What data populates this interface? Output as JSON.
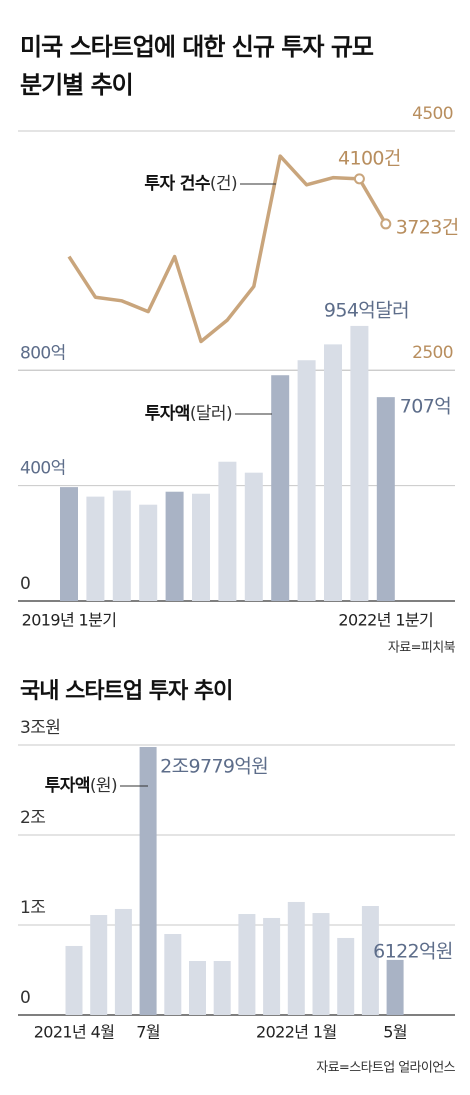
{
  "chart_data": [
    {
      "type": "combo",
      "title": "미국 스타트업에 대한 신규 투자 규모 분기별 추이",
      "categories": [
        "2019년 1분기",
        null,
        null,
        null,
        null,
        null,
        null,
        null,
        null,
        null,
        null,
        null,
        "2022년 1분기"
      ],
      "ylim": [
        0,
        1630
      ],
      "yticks": [
        0,
        {
          "value": 400,
          "label": "400억"
        },
        {
          "value": 800,
          "label": "800억"
        }
      ],
      "y2lim": [
        570,
        4500
      ],
      "y2ticks": [
        2500,
        4500
      ],
      "grid": true,
      "series": [
        {
          "name": "투자액",
          "unit": "(달러)",
          "type": "bar",
          "colors": [
            "#a9b3c5",
            "#d8dde6",
            "#d8dde6",
            "#d8dde6",
            "#a9b3c5",
            "#d8dde6",
            "#d8dde6",
            "#d8dde6",
            "#a9b3c5",
            "#d8dde6",
            "#d8dde6",
            "#d8dde6",
            "#a9b3c5"
          ],
          "values": [
            395,
            362,
            383,
            334,
            379,
            372,
            483,
            445,
            783,
            835,
            890,
            954,
            707
          ],
          "value_labels": [
            null,
            null,
            null,
            null,
            null,
            null,
            null,
            null,
            null,
            null,
            null,
            "954억달러",
            "707억"
          ]
        },
        {
          "name": "투자 건수",
          "unit": "(건)",
          "type": "line",
          "axis": "y2",
          "color": "#c9a57c",
          "values": [
            3450,
            3110,
            3080,
            2990,
            3450,
            2740,
            2920,
            3200,
            4290,
            4050,
            4110,
            4100,
            3723
          ],
          "value_labels": [
            null,
            null,
            null,
            null,
            null,
            null,
            null,
            null,
            null,
            null,
            null,
            "4100건",
            "3723건"
          ]
        }
      ],
      "source": "자료=피치북"
    },
    {
      "type": "bar",
      "title": "국내 스타트업 투자 추이",
      "categories": [
        "2021년 4월",
        null,
        null,
        "7월",
        null,
        null,
        null,
        null,
        null,
        "2022년 1월",
        null,
        null,
        null,
        "5월"
      ],
      "ylim": [
        0,
        30000
      ],
      "yticks": [
        0,
        {
          "value": 10000,
          "label": "1조"
        },
        {
          "value": 20000,
          "label": "2조"
        },
        {
          "value": 30000,
          "label": "3조원"
        }
      ],
      "grid": true,
      "series": [
        {
          "name": "투자액",
          "unit": "(원)",
          "type": "bar",
          "colors": [
            "#d8dde6",
            "#d8dde6",
            "#d8dde6",
            "#a9b3c5",
            "#d8dde6",
            "#d8dde6",
            "#d8dde6",
            "#d8dde6",
            "#d8dde6",
            "#d8dde6",
            "#d8dde6",
            "#d8dde6",
            "#d8dde6",
            "#a9b3c5"
          ],
          "values": [
            7670,
            11110,
            11780,
            29779,
            9000,
            6000,
            6000,
            11220,
            10780,
            12560,
            11330,
            8560,
            12110,
            6122
          ],
          "value_labels": [
            null,
            null,
            null,
            "2조9779억원",
            null,
            null,
            null,
            null,
            null,
            null,
            null,
            null,
            null,
            "6122억원"
          ]
        }
      ],
      "source": "자료=스타트업 얼라이언스"
    }
  ]
}
